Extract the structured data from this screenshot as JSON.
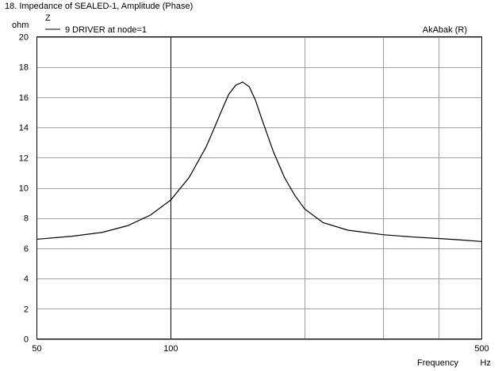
{
  "chart_data": {
    "type": "line",
    "title": "18. Impedance of SEALED-1, Amplitude (Phase)",
    "quantity_label": "Z",
    "ylabel": "ohm",
    "xlabel": "Frequency",
    "xunit": "Hz",
    "watermark": "AkAbak (R)",
    "xscale": "log",
    "xlim": [
      50,
      500
    ],
    "ylim": [
      0,
      20
    ],
    "xticks": [
      "50",
      "100",
      "500"
    ],
    "yticks": [
      "20",
      "18",
      "16",
      "14",
      "12",
      "10",
      "8",
      "6",
      "4",
      "2",
      "0"
    ],
    "grid": true,
    "legend_position": "top-left",
    "line_color": "#000000",
    "series": [
      {
        "name": "9 DRIVER  at node=1",
        "x": [
          50,
          60,
          70,
          80,
          90,
          100,
          110,
          120,
          125,
          130,
          135,
          140,
          145,
          150,
          155,
          160,
          170,
          180,
          190,
          200,
          220,
          250,
          300,
          350,
          400,
          450,
          500
        ],
        "y": [
          6.6,
          6.8,
          7.05,
          7.5,
          8.2,
          9.2,
          10.7,
          12.7,
          13.9,
          15.1,
          16.2,
          16.8,
          17.0,
          16.7,
          15.8,
          14.6,
          12.4,
          10.7,
          9.5,
          8.6,
          7.7,
          7.2,
          6.9,
          6.75,
          6.65,
          6.55,
          6.45
        ]
      }
    ]
  }
}
